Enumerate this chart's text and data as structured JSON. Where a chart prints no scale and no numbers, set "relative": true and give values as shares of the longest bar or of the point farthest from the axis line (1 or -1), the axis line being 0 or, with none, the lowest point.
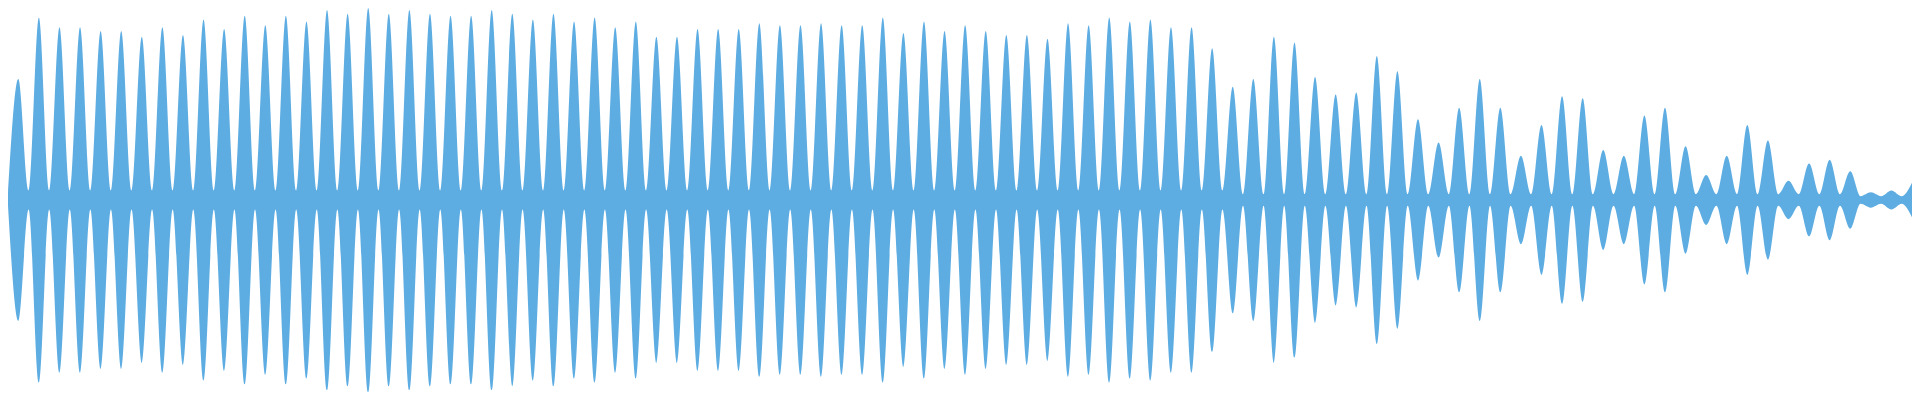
{
  "chart_data": {
    "type": "area",
    "relative": true,
    "categories": [
      null,
      null,
      null,
      null,
      null,
      null,
      null,
      null,
      null,
      null,
      null,
      null,
      null,
      null,
      null,
      null,
      null,
      null,
      null,
      null,
      null,
      null,
      null,
      null,
      null,
      null,
      null,
      null,
      null,
      null,
      null,
      null,
      null,
      null,
      null,
      null,
      null,
      null,
      null,
      null,
      null,
      null,
      null,
      null,
      null,
      null,
      null,
      null,
      null,
      null,
      null,
      null,
      null,
      null,
      null,
      null,
      null,
      null,
      null,
      null,
      null,
      null,
      null,
      null,
      null,
      null,
      null,
      null,
      null,
      null,
      null,
      null,
      null,
      null,
      null,
      null,
      null,
      null,
      null,
      null,
      null,
      null,
      null,
      null,
      null,
      null,
      null,
      null,
      null,
      null,
      null,
      null,
      null,
      null,
      null,
      null,
      null,
      null,
      null,
      null,
      null,
      null,
      null,
      null,
      null,
      null,
      null,
      null,
      null,
      null,
      null,
      null,
      null,
      null,
      null,
      null,
      null,
      null,
      null,
      null,
      null,
      null,
      null,
      null,
      null,
      null,
      null,
      null,
      null,
      null,
      null,
      null,
      null,
      null,
      null,
      null,
      null,
      null,
      null,
      null,
      null,
      null,
      null,
      null,
      null,
      null,
      null,
      null,
      null,
      null,
      null,
      null,
      null,
      null,
      null,
      null,
      null,
      null,
      null,
      null,
      null,
      null,
      null,
      null,
      null,
      null,
      null,
      null,
      null,
      null,
      null,
      null,
      null,
      null,
      null,
      null,
      null,
      null,
      null,
      null,
      null,
      null,
      null,
      null,
      null,
      null
    ],
    "series": [
      {
        "color": "#5dade2",
        "values": [
          0.03,
          0.63,
          0.05,
          0.95,
          0.05,
          0.9,
          0.05,
          0.9,
          0.05,
          0.88,
          0.05,
          0.88,
          0.05,
          0.85,
          0.05,
          0.9,
          0.05,
          0.86,
          0.05,
          0.94,
          0.05,
          0.89,
          0.05,
          0.96,
          0.05,
          0.91,
          0.05,
          0.96,
          0.05,
          0.93,
          0.05,
          0.99,
          0.05,
          0.97,
          0.05,
          1.0,
          0.05,
          0.97,
          0.05,
          0.99,
          0.05,
          0.97,
          0.05,
          0.96,
          0.05,
          0.96,
          0.05,
          0.99,
          0.05,
          0.97,
          0.05,
          0.94,
          0.05,
          0.97,
          0.05,
          0.93,
          0.05,
          0.95,
          0.05,
          0.9,
          0.05,
          0.93,
          0.05,
          0.85,
          0.05,
          0.85,
          0.05,
          0.89,
          0.05,
          0.89,
          0.05,
          0.89,
          0.05,
          0.92,
          0.05,
          0.91,
          0.05,
          0.91,
          0.05,
          0.92,
          0.05,
          0.91,
          0.05,
          0.91,
          0.05,
          0.95,
          0.05,
          0.87,
          0.05,
          0.93,
          0.05,
          0.88,
          0.05,
          0.91,
          0.05,
          0.88,
          0.05,
          0.86,
          0.05,
          0.86,
          0.05,
          0.84,
          0.05,
          0.92,
          0.05,
          0.91,
          0.05,
          0.95,
          0.05,
          0.93,
          0.05,
          0.94,
          0.05,
          0.9,
          0.05,
          0.9,
          0.05,
          0.79,
          0.05,
          0.59,
          0.03,
          0.63,
          0.03,
          0.85,
          0.03,
          0.82,
          0.03,
          0.64,
          0.03,
          0.55,
          0.03,
          0.56,
          0.03,
          0.75,
          0.03,
          0.67,
          0.03,
          0.42,
          0.03,
          0.3,
          0.03,
          0.48,
          0.03,
          0.63,
          0.03,
          0.48,
          0.03,
          0.23,
          0.03,
          0.39,
          0.03,
          0.54,
          0.03,
          0.53,
          0.03,
          0.26,
          0.03,
          0.23,
          0.03,
          0.44,
          0.03,
          0.48,
          0.03,
          0.28,
          0.03,
          0.13,
          0.03,
          0.23,
          0.03,
          0.39,
          0.03,
          0.31,
          0.03,
          0.1,
          0.03,
          0.19,
          0.03,
          0.21,
          0.03,
          0.15,
          0.02,
          0.04,
          0.02,
          0.05,
          0.02,
          0.09
        ]
      }
    ]
  }
}
